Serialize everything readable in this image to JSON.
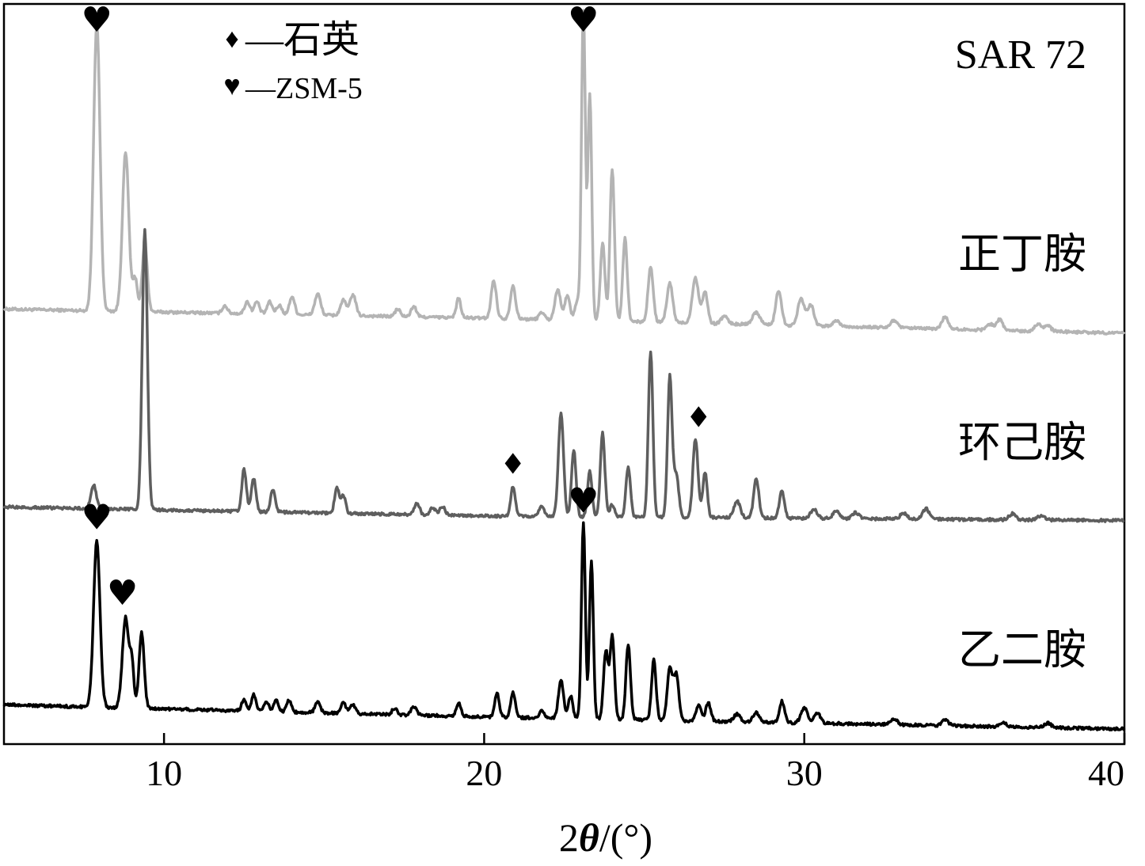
{
  "chart_data": {
    "type": "line",
    "title": "SAR 72",
    "xlabel_prefix": "2",
    "xlabel_symbol": "θ",
    "xlabel_suffix": "/(°)",
    "ylabel": "",
    "xlim": [
      5,
      40
    ],
    "xticks": [
      10,
      20,
      30,
      40
    ],
    "y_axis_ticks": false,
    "grid": false,
    "legend": {
      "placement": "top-left",
      "entries": [
        {
          "symbol": "♦",
          "label": "—石英"
        },
        {
          "symbol": "♥",
          "label": "—ZSM-5"
        }
      ]
    },
    "series": [
      {
        "name": "正丁胺",
        "color": "#b4b4b4",
        "offset": 2.6,
        "baseline": [
          [
            5,
            0.18
          ],
          [
            20,
            0.12
          ],
          [
            40,
            0.02
          ]
        ],
        "peaks": [
          [
            7.9,
            1.9,
            0.1
          ],
          [
            8.8,
            1.05,
            0.1
          ],
          [
            9.1,
            0.22,
            0.07
          ],
          [
            9.4,
            0.45,
            0.08
          ],
          [
            11.9,
            0.05,
            0.08
          ],
          [
            12.6,
            0.08,
            0.08
          ],
          [
            12.9,
            0.08,
            0.08
          ],
          [
            13.3,
            0.08,
            0.08
          ],
          [
            13.6,
            0.06,
            0.08
          ],
          [
            14.0,
            0.12,
            0.08
          ],
          [
            14.8,
            0.14,
            0.09
          ],
          [
            15.6,
            0.1,
            0.09
          ],
          [
            15.9,
            0.14,
            0.09
          ],
          [
            17.3,
            0.05,
            0.08
          ],
          [
            17.8,
            0.07,
            0.08
          ],
          [
            19.2,
            0.13,
            0.07
          ],
          [
            20.3,
            0.25,
            0.08
          ],
          [
            20.9,
            0.22,
            0.08
          ],
          [
            21.8,
            0.05,
            0.08
          ],
          [
            22.3,
            0.2,
            0.09
          ],
          [
            22.6,
            0.16,
            0.08
          ],
          [
            22.9,
            0.12,
            0.07
          ],
          [
            23.1,
            2.05,
            0.06
          ],
          [
            23.3,
            1.5,
            0.06
          ],
          [
            23.7,
            0.52,
            0.07
          ],
          [
            24.0,
            1.0,
            0.07
          ],
          [
            24.4,
            0.55,
            0.07
          ],
          [
            25.2,
            0.36,
            0.08
          ],
          [
            25.8,
            0.26,
            0.09
          ],
          [
            26.6,
            0.3,
            0.1
          ],
          [
            26.9,
            0.21,
            0.08
          ],
          [
            27.5,
            0.05,
            0.1
          ],
          [
            28.5,
            0.08,
            0.12
          ],
          [
            29.2,
            0.23,
            0.09
          ],
          [
            29.9,
            0.18,
            0.1
          ],
          [
            30.2,
            0.14,
            0.1
          ],
          [
            31.0,
            0.04,
            0.1
          ],
          [
            32.8,
            0.05,
            0.1
          ],
          [
            34.4,
            0.08,
            0.1
          ],
          [
            35.8,
            0.04,
            0.1
          ],
          [
            36.1,
            0.07,
            0.1
          ],
          [
            37.3,
            0.05,
            0.1
          ],
          [
            37.6,
            0.04,
            0.1
          ]
        ]
      },
      {
        "name": "环己胺",
        "color": "#5e5e5e",
        "offset": 1.35,
        "baseline": [
          [
            5,
            0.12
          ],
          [
            20,
            0.06
          ],
          [
            40,
            0.03
          ]
        ],
        "peaks": [
          [
            7.8,
            0.16,
            0.08
          ],
          [
            9.4,
            1.85,
            0.08
          ],
          [
            12.5,
            0.28,
            0.07
          ],
          [
            12.8,
            0.22,
            0.07
          ],
          [
            13.4,
            0.15,
            0.07
          ],
          [
            15.4,
            0.17,
            0.07
          ],
          [
            15.6,
            0.12,
            0.07
          ],
          [
            17.9,
            0.08,
            0.08
          ],
          [
            18.4,
            0.05,
            0.08
          ],
          [
            18.7,
            0.06,
            0.08
          ],
          [
            20.9,
            0.2,
            0.07
          ],
          [
            21.8,
            0.07,
            0.08
          ],
          [
            22.4,
            0.68,
            0.08
          ],
          [
            22.8,
            0.44,
            0.07
          ],
          [
            23.3,
            0.3,
            0.07
          ],
          [
            23.7,
            0.56,
            0.07
          ],
          [
            24.0,
            0.08,
            0.07
          ],
          [
            24.5,
            0.33,
            0.07
          ],
          [
            25.2,
            1.1,
            0.07
          ],
          [
            25.8,
            0.93,
            0.07
          ],
          [
            26.0,
            0.28,
            0.08
          ],
          [
            26.6,
            0.52,
            0.08
          ],
          [
            26.9,
            0.3,
            0.07
          ],
          [
            27.9,
            0.11,
            0.1
          ],
          [
            28.5,
            0.26,
            0.08
          ],
          [
            29.3,
            0.18,
            0.08
          ],
          [
            30.3,
            0.06,
            0.1
          ],
          [
            31.0,
            0.05,
            0.1
          ],
          [
            31.6,
            0.04,
            0.1
          ],
          [
            33.1,
            0.04,
            0.1
          ],
          [
            33.8,
            0.07,
            0.1
          ],
          [
            36.5,
            0.04,
            0.1
          ],
          [
            37.4,
            0.03,
            0.1
          ]
        ]
      },
      {
        "name": "乙二胺",
        "color": "#000000",
        "offset": 0.0,
        "baseline": [
          [
            5,
            0.16
          ],
          [
            20,
            0.08
          ],
          [
            40,
            0.0
          ]
        ],
        "peaks": [
          [
            7.9,
            1.1,
            0.1
          ],
          [
            8.8,
            0.6,
            0.1
          ],
          [
            9.0,
            0.28,
            0.06
          ],
          [
            9.3,
            0.5,
            0.08
          ],
          [
            12.5,
            0.08,
            0.07
          ],
          [
            12.8,
            0.11,
            0.07
          ],
          [
            13.2,
            0.07,
            0.07
          ],
          [
            13.5,
            0.08,
            0.07
          ],
          [
            13.9,
            0.08,
            0.07
          ],
          [
            14.8,
            0.07,
            0.08
          ],
          [
            15.6,
            0.07,
            0.08
          ],
          [
            15.9,
            0.06,
            0.08
          ],
          [
            17.2,
            0.04,
            0.08
          ],
          [
            17.8,
            0.06,
            0.08
          ],
          [
            19.2,
            0.09,
            0.07
          ],
          [
            20.4,
            0.16,
            0.07
          ],
          [
            20.9,
            0.17,
            0.07
          ],
          [
            21.8,
            0.05,
            0.08
          ],
          [
            22.4,
            0.25,
            0.08
          ],
          [
            22.7,
            0.15,
            0.07
          ],
          [
            23.1,
            1.3,
            0.06
          ],
          [
            23.35,
            1.05,
            0.06
          ],
          [
            23.8,
            0.45,
            0.07
          ],
          [
            24.0,
            0.55,
            0.07
          ],
          [
            24.5,
            0.5,
            0.07
          ],
          [
            25.3,
            0.4,
            0.07
          ],
          [
            25.8,
            0.34,
            0.08
          ],
          [
            26.0,
            0.3,
            0.08
          ],
          [
            26.7,
            0.1,
            0.08
          ],
          [
            27.0,
            0.12,
            0.08
          ],
          [
            27.9,
            0.05,
            0.1
          ],
          [
            28.5,
            0.06,
            0.1
          ],
          [
            29.3,
            0.14,
            0.08
          ],
          [
            30.0,
            0.1,
            0.1
          ],
          [
            30.4,
            0.07,
            0.1
          ],
          [
            32.8,
            0.04,
            0.1
          ],
          [
            34.4,
            0.04,
            0.1
          ],
          [
            36.2,
            0.03,
            0.1
          ],
          [
            37.6,
            0.03,
            0.1
          ]
        ]
      }
    ],
    "annotations": [
      {
        "symbol": "♥",
        "x": 7.9,
        "series": "正丁胺"
      },
      {
        "symbol": "♥",
        "x": 23.1,
        "series": "正丁胺"
      },
      {
        "symbol": "♦",
        "x": 20.9,
        "series": "环己胺"
      },
      {
        "symbol": "♦",
        "x": 26.7,
        "series": "环己胺"
      },
      {
        "symbol": "♥",
        "x": 7.9,
        "series": "乙二胺"
      },
      {
        "symbol": "♥",
        "x": 8.7,
        "series": "乙二胺"
      },
      {
        "symbol": "♥",
        "x": 23.1,
        "series": "乙二胺"
      }
    ],
    "y_display": [
      -0.1,
      4.8
    ]
  }
}
